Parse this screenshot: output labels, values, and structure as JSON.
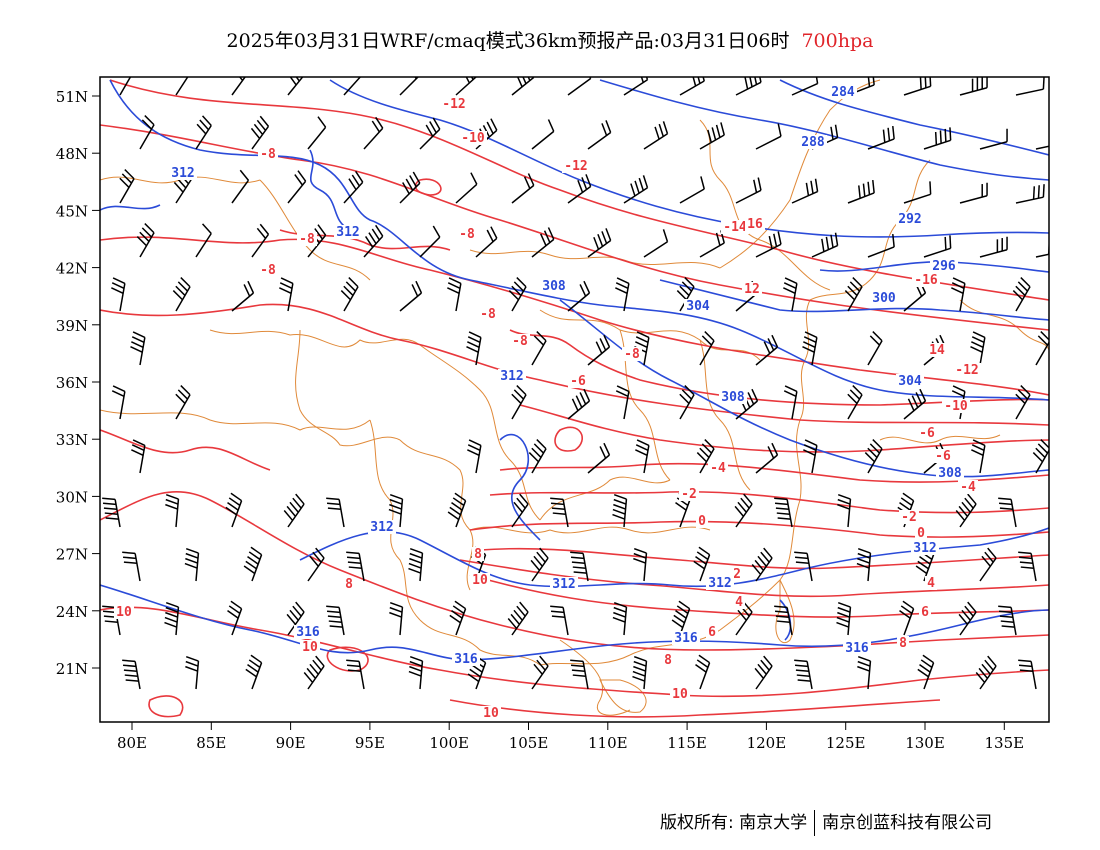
{
  "header": {
    "title": "2025年03月31日WRF/cmaq模式36km预报产品:03月31日06时",
    "level": "700hpa"
  },
  "map": {
    "lat_labels": [
      "51N",
      "48N",
      "45N",
      "42N",
      "39N",
      "36N",
      "33N",
      "30N",
      "27N",
      "24N",
      "21N"
    ],
    "lon_labels": [
      "80E",
      "85E",
      "90E",
      "95E",
      "100E",
      "105E",
      "110E",
      "115E",
      "120E",
      "125E",
      "130E",
      "135E"
    ],
    "colors": {
      "temperature": "#e8383d",
      "height": "#2b4bd8",
      "border": "#e08a3a",
      "wind": "#000000"
    },
    "height_labels": [
      "284",
      "288",
      "292",
      "296",
      "300",
      "304",
      "308",
      "312",
      "316"
    ],
    "temperature_labels": [
      "-16",
      "-14",
      "-12",
      "-10",
      "-8",
      "-6",
      "-4",
      "-2",
      "0",
      "2",
      "4",
      "6",
      "8",
      "10",
      "12",
      "14",
      "16"
    ]
  },
  "footer": {
    "left": "版权所有: 南京大学",
    "right": "南京创蓝科技有限公司"
  }
}
